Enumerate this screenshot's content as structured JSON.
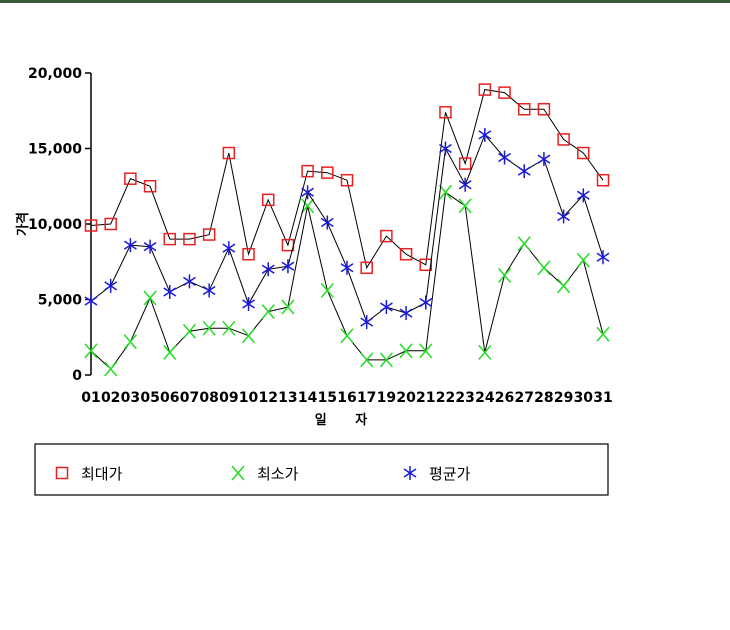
{
  "chart_data": {
    "type": "line",
    "categories": [
      "01",
      "02",
      "03",
      "05",
      "06",
      "07",
      "08",
      "09",
      "10",
      "12",
      "13",
      "14",
      "15",
      "16",
      "17",
      "19",
      "20",
      "21",
      "22",
      "23",
      "24",
      "26",
      "27",
      "28",
      "29",
      "30",
      "31"
    ],
    "xlabel": "일 자",
    "ylabel": "가격",
    "ylim": [
      0,
      20000
    ],
    "yticks": [
      "0",
      "5,000",
      "10,000",
      "15,000",
      "20,000"
    ],
    "grid": false,
    "legend_position": "bottom",
    "series": [
      {
        "name": "최대가",
        "marker": "square",
        "color": "#e82020",
        "values": [
          9900,
          10000,
          13000,
          12500,
          9000,
          9000,
          9300,
          14700,
          8000,
          11600,
          8600,
          13500,
          13400,
          12900,
          7100,
          9200,
          8000,
          7300,
          17400,
          14000,
          18900,
          18700,
          17600,
          17600,
          15600,
          14700,
          12900
        ]
      },
      {
        "name": "최소가",
        "marker": "x",
        "color": "#22dd22",
        "values": [
          1600,
          400,
          2200,
          5100,
          1500,
          2900,
          3100,
          3100,
          2600,
          4200,
          4500,
          11200,
          5600,
          2600,
          1000,
          1000,
          1600,
          1600,
          12100,
          11200,
          1500,
          6600,
          8700,
          7100,
          5900,
          7600,
          2700
        ]
      },
      {
        "name": "평균가",
        "marker": "asterisk",
        "color": "#1a1ad8",
        "values": [
          4900,
          5900,
          8600,
          8500,
          5500,
          6200,
          5600,
          8400,
          4700,
          7000,
          7200,
          12100,
          10100,
          7100,
          3500,
          4500,
          4100,
          4800,
          15000,
          12600,
          15900,
          14400,
          13500,
          14300,
          10500,
          11900,
          7800
        ]
      }
    ]
  }
}
